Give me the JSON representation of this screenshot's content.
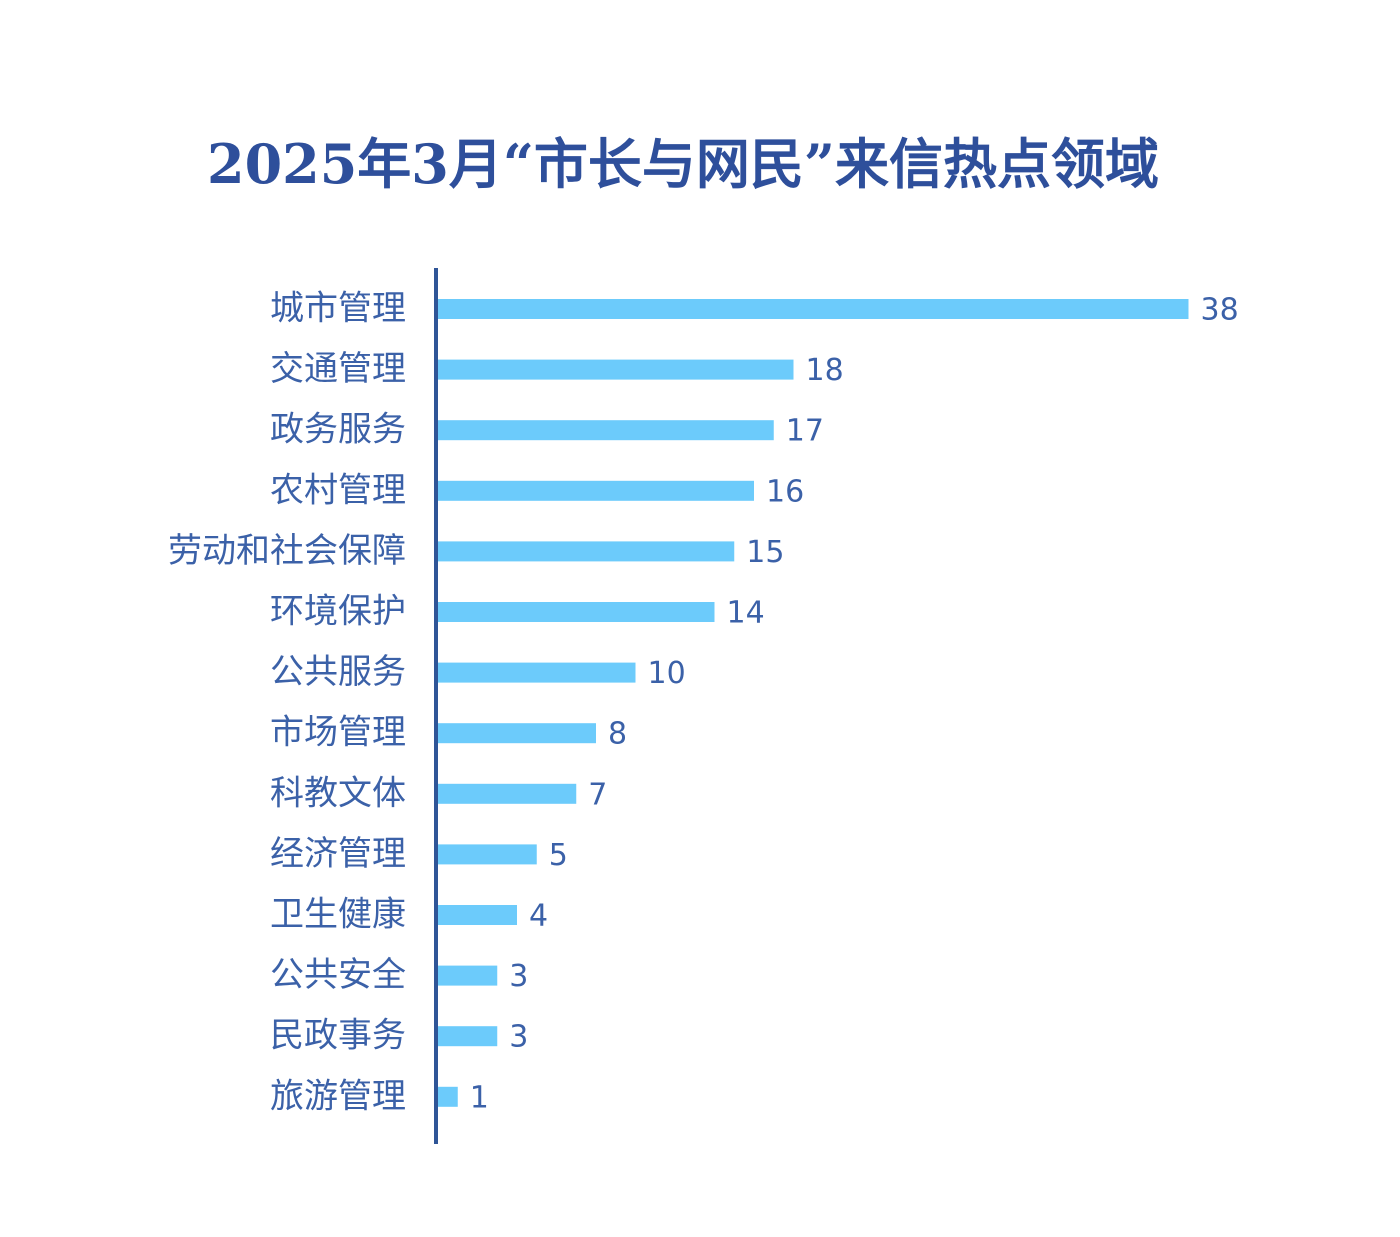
{
  "title": "2025年3月“市长与网民”来信热点领域",
  "colors": {
    "title": "#2e4f9b",
    "bar": "#6ccbfb",
    "axis": "#2f5597",
    "category_text": "#3b61a8",
    "value_text": "#3b61a8"
  },
  "chart_data": {
    "type": "bar",
    "orientation": "horizontal",
    "title": "2025年3月“市长与网民”来信热点领域",
    "xlabel": "",
    "ylabel": "",
    "grid": false,
    "legend": "none",
    "xlim": [
      0,
      38
    ],
    "categories": [
      "城市管理",
      "交通管理",
      "政务服务",
      "农村管理",
      "劳动和社会保障",
      "环境保护",
      "公共服务",
      "市场管理",
      "科教文体",
      "经济管理",
      "卫生健康",
      "公共安全",
      "民政事务",
      "旅游管理"
    ],
    "values": [
      38,
      18,
      17,
      16,
      15,
      14,
      10,
      8,
      7,
      5,
      4,
      3,
      3,
      1
    ]
  }
}
